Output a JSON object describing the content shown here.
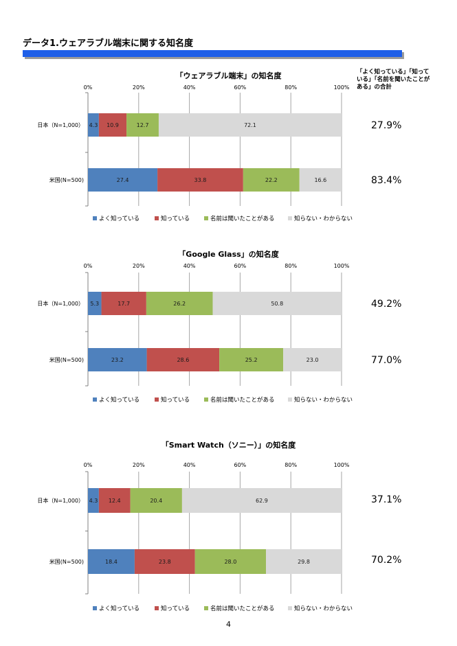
{
  "page": {
    "title": "データ1.ウェアラブル端末に関する知名度",
    "side_header": "「よく知っている」「知っている」「名前を聞いたことがある」の合計",
    "page_number": "4"
  },
  "colors": {
    "well_known": "#4f81bd",
    "known": "#c0504d",
    "heard": "#9bbb59",
    "unknown": "#d9d9d9",
    "title_bar": "#1f5fe8"
  },
  "legend": [
    "よく知っている",
    "知っている",
    "名前は聞いたことがある",
    "知らない・わからない"
  ],
  "chart_data": [
    {
      "type": "bar",
      "orientation": "horizontal",
      "stacked": "percent",
      "title": "「ウェアラブル端末」の知名度",
      "categories": [
        "日本（N=1,000）",
        "米国(N=500)"
      ],
      "xlim": [
        0,
        100
      ],
      "xticks": [
        "0%",
        "20%",
        "40%",
        "60%",
        "80%",
        "100%"
      ],
      "series": [
        {
          "name": "よく知っている",
          "values": [
            4.3,
            27.4
          ]
        },
        {
          "name": "知っている",
          "values": [
            10.9,
            33.8
          ]
        },
        {
          "name": "名前は聞いたことがある",
          "values": [
            12.7,
            22.2
          ]
        },
        {
          "name": "知らない・わからない",
          "values": [
            72.1,
            16.6
          ]
        }
      ],
      "labels": [
        [
          "4.3",
          "10.9",
          "12.7",
          "72.1"
        ],
        [
          "27.4",
          "33.8",
          "22.2",
          "16.6"
        ]
      ],
      "totals": [
        "27.9%",
        "83.4%"
      ],
      "legend_position": "bottom",
      "grid": true
    },
    {
      "type": "bar",
      "orientation": "horizontal",
      "stacked": "percent",
      "title": "「Google Glass」の知名度",
      "categories": [
        "日本（N=1,000）",
        "米国(N=500)"
      ],
      "xlim": [
        0,
        100
      ],
      "xticks": [
        "0%",
        "20%",
        "40%",
        "60%",
        "80%",
        "100%"
      ],
      "series": [
        {
          "name": "よく知っている",
          "values": [
            5.3,
            23.2
          ]
        },
        {
          "name": "知っている",
          "values": [
            17.7,
            28.6
          ]
        },
        {
          "name": "名前は聞いたことがある",
          "values": [
            26.2,
            25.2
          ]
        },
        {
          "name": "知らない・わからない",
          "values": [
            50.8,
            23.0
          ]
        }
      ],
      "labels": [
        [
          "5.3",
          "17.7",
          "26.2",
          "50.8"
        ],
        [
          "23.2",
          "28.6",
          "25.2",
          "23.0"
        ]
      ],
      "totals": [
        "49.2%",
        "77.0%"
      ],
      "legend_position": "bottom",
      "grid": true
    },
    {
      "type": "bar",
      "orientation": "horizontal",
      "stacked": "percent",
      "title": "「Smart Watch（ソニー）」の知名度",
      "categories": [
        "日本（N=1,000）",
        "米国(N=500)"
      ],
      "xlim": [
        0,
        100
      ],
      "xticks": [
        "0%",
        "20%",
        "40%",
        "60%",
        "80%",
        "100%"
      ],
      "series": [
        {
          "name": "よく知っている",
          "values": [
            4.3,
            18.4
          ]
        },
        {
          "name": "知っている",
          "values": [
            12.4,
            23.8
          ]
        },
        {
          "name": "名前は聞いたことがある",
          "values": [
            20.4,
            28.0
          ]
        },
        {
          "name": "知らない・わからない",
          "values": [
            62.9,
            29.8
          ]
        }
      ],
      "labels": [
        [
          "4.3",
          "12.4",
          "20.4",
          "62.9"
        ],
        [
          "18.4",
          "23.8",
          "28.0",
          "29.8"
        ]
      ],
      "totals": [
        "37.1%",
        "70.2%"
      ],
      "legend_position": "bottom",
      "grid": true
    }
  ]
}
